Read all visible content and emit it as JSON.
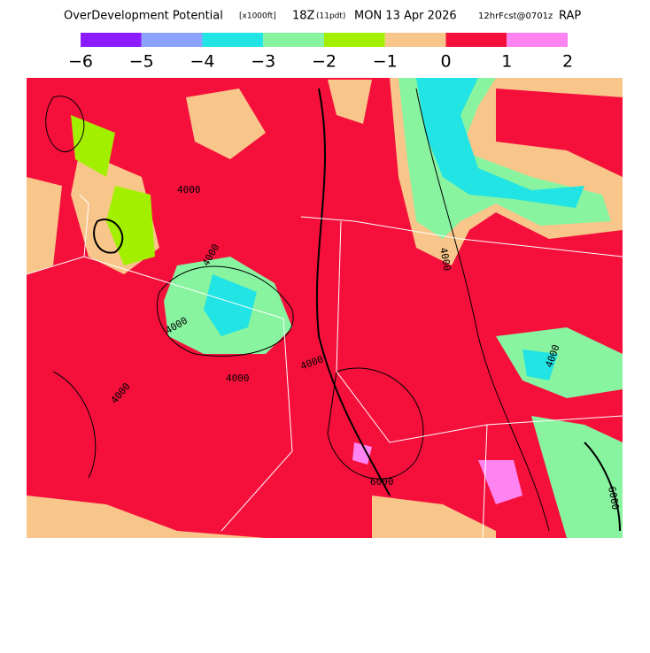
{
  "header": {
    "title": "OverDevelopment Potential",
    "units": "[x1000ft]",
    "time": "18Z",
    "local_time": "(11pdt)",
    "date": "MON 13 Apr 2026",
    "forecast": "12hrFcst@0701z",
    "model": "RAP"
  },
  "colorbar": {
    "colors": [
      "#8c1cff",
      "#8ca2ff",
      "#22e4e4",
      "#88f4a0",
      "#a2f000",
      "#f8c68a",
      "#f5103c",
      "#ff84f2"
    ],
    "ticks": [
      {
        "value": -6,
        "label": "−6"
      },
      {
        "value": -5,
        "label": "−5"
      },
      {
        "value": -4,
        "label": "−4"
      },
      {
        "value": -3,
        "label": "−3"
      },
      {
        "value": -2,
        "label": "−2"
      },
      {
        "value": -1,
        "label": "−1"
      },
      0,
      1,
      2
    ]
  },
  "map": {
    "contour_labels": [
      "4000",
      "4000",
      "4000",
      "4000",
      "4000",
      "4000",
      "4000",
      "6000",
      "6000",
      "4000"
    ]
  }
}
